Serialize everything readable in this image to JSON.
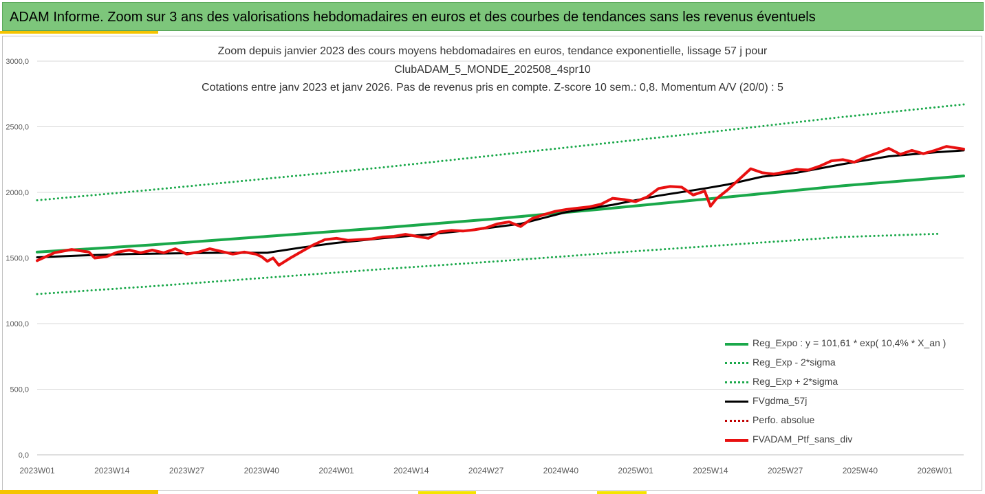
{
  "banner": {
    "title": "ADAM Informe. Zoom sur 3 ans des valorisations hebdomadaires en euros et des courbes de tendances sans les revenus éventuels"
  },
  "colors": {
    "banner_bg": "#7dc67b",
    "accent": "#f5c400",
    "reg_expo": "#1aa84a",
    "band": "#1aa84a",
    "gdma": "#000000",
    "perf_abs": "#c00000",
    "ptf": "#e81010",
    "grid": "#d9d9d9"
  },
  "chart_data": {
    "type": "line",
    "title_lines": [
      "Zoom depuis janvier 2023 des cours moyens hebdomadaires  en euros, tendance exponentielle, lissage 57 j pour",
      "ClubADAM_5_MONDE_202508_4spr10",
      "Cotations entre janv 2023 et janv 2026. Pas de revenus pris en compte. Z-score 10 sem.: 0,8. Momentum A/V (20/0) : 5"
    ],
    "ylim": [
      0,
      3000
    ],
    "y_ticks": [
      "0,0",
      "500,0",
      "1000,0",
      "1500,0",
      "2000,0",
      "2500,0",
      "3000,0"
    ],
    "y_tick_values": [
      0,
      500,
      1000,
      1500,
      2000,
      2500,
      3000
    ],
    "x_tick_labels": [
      "2023W01",
      "2023W14",
      "2023W27",
      "2023W40",
      "2024W01",
      "2024W14",
      "2024W27",
      "2024W40",
      "2025W01",
      "2025W14",
      "2025W27",
      "2025W40",
      "2026W01"
    ],
    "x_tick_index": [
      0,
      13,
      26,
      39,
      52,
      65,
      78,
      91,
      104,
      117,
      130,
      143,
      156
    ],
    "n_weeks": 161,
    "grid": true,
    "legend_position": "bottom-right",
    "series": [
      {
        "name": "Reg_Expo : y = 101,61 * exp( 10,4% *  X_an )",
        "style": "solid",
        "width": 4,
        "color": "#1aa84a",
        "x_index": [
          0,
          20,
          40,
          60,
          80,
          100,
          120,
          140,
          161
        ],
        "values": [
          1545,
          1600,
          1665,
          1730,
          1800,
          1880,
          1965,
          2050,
          2125
        ]
      },
      {
        "name": "Reg_Exp - 2*sigma",
        "style": "dotted",
        "width": 3,
        "color": "#1aa84a",
        "x_index": [
          0,
          20,
          40,
          60,
          80,
          100,
          120,
          140,
          157
        ],
        "values": [
          1225,
          1285,
          1350,
          1415,
          1475,
          1540,
          1600,
          1660,
          1685
        ]
      },
      {
        "name": "Reg_Exp + 2*sigma",
        "style": "dotted",
        "width": 3,
        "color": "#1aa84a",
        "x_index": [
          0,
          20,
          40,
          60,
          80,
          100,
          120,
          140,
          161
        ],
        "values": [
          1940,
          2020,
          2105,
          2190,
          2285,
          2380,
          2475,
          2575,
          2670
        ]
      },
      {
        "name": "FVgdma_57j",
        "style": "solid",
        "width": 3,
        "color": "#000000",
        "x_index": [
          0,
          8,
          16,
          24,
          32,
          40,
          46,
          52,
          60,
          68,
          76,
          84,
          92,
          100,
          108,
          116,
          120,
          126,
          132,
          140,
          148,
          156,
          161
        ],
        "values": [
          1505,
          1520,
          1530,
          1535,
          1540,
          1540,
          1580,
          1615,
          1650,
          1680,
          1715,
          1760,
          1850,
          1905,
          1975,
          2030,
          2060,
          2120,
          2150,
          2215,
          2275,
          2305,
          2320
        ]
      },
      {
        "name": "Perfo. absolue",
        "style": "dotted",
        "width": 3,
        "color": "#c00000",
        "x_index": [],
        "values": []
      },
      {
        "name": "FVADAM_Ptf_sans_div",
        "style": "solid",
        "width": 4,
        "color": "#e81010",
        "x_index": [
          0,
          3,
          6,
          9,
          10,
          12,
          14,
          16,
          18,
          20,
          22,
          24,
          26,
          28,
          30,
          32,
          34,
          36,
          38,
          39,
          40,
          41,
          42,
          44,
          46,
          48,
          50,
          52,
          54,
          56,
          58,
          60,
          62,
          64,
          66,
          68,
          70,
          72,
          74,
          76,
          78,
          80,
          82,
          84,
          85,
          86,
          88,
          90,
          92,
          94,
          96,
          98,
          100,
          102,
          104,
          106,
          108,
          110,
          112,
          114,
          116,
          117,
          118,
          120,
          122,
          124,
          126,
          128,
          130,
          132,
          134,
          136,
          138,
          140,
          142,
          144,
          146,
          148,
          150,
          152,
          154,
          156,
          158,
          161
        ],
        "values": [
          1480,
          1540,
          1565,
          1545,
          1500,
          1510,
          1545,
          1560,
          1540,
          1560,
          1540,
          1570,
          1530,
          1545,
          1570,
          1550,
          1530,
          1545,
          1530,
          1510,
          1475,
          1500,
          1445,
          1500,
          1550,
          1600,
          1640,
          1650,
          1635,
          1640,
          1645,
          1660,
          1665,
          1680,
          1665,
          1650,
          1700,
          1710,
          1705,
          1715,
          1730,
          1760,
          1775,
          1740,
          1770,
          1800,
          1830,
          1855,
          1870,
          1880,
          1890,
          1910,
          1955,
          1945,
          1930,
          1965,
          2030,
          2045,
          2040,
          1980,
          2010,
          1895,
          1950,
          2020,
          2100,
          2180,
          2150,
          2140,
          2155,
          2175,
          2170,
          2200,
          2240,
          2250,
          2230,
          2270,
          2300,
          2335,
          2290,
          2320,
          2295,
          2320,
          2350,
          2330
        ]
      }
    ]
  }
}
